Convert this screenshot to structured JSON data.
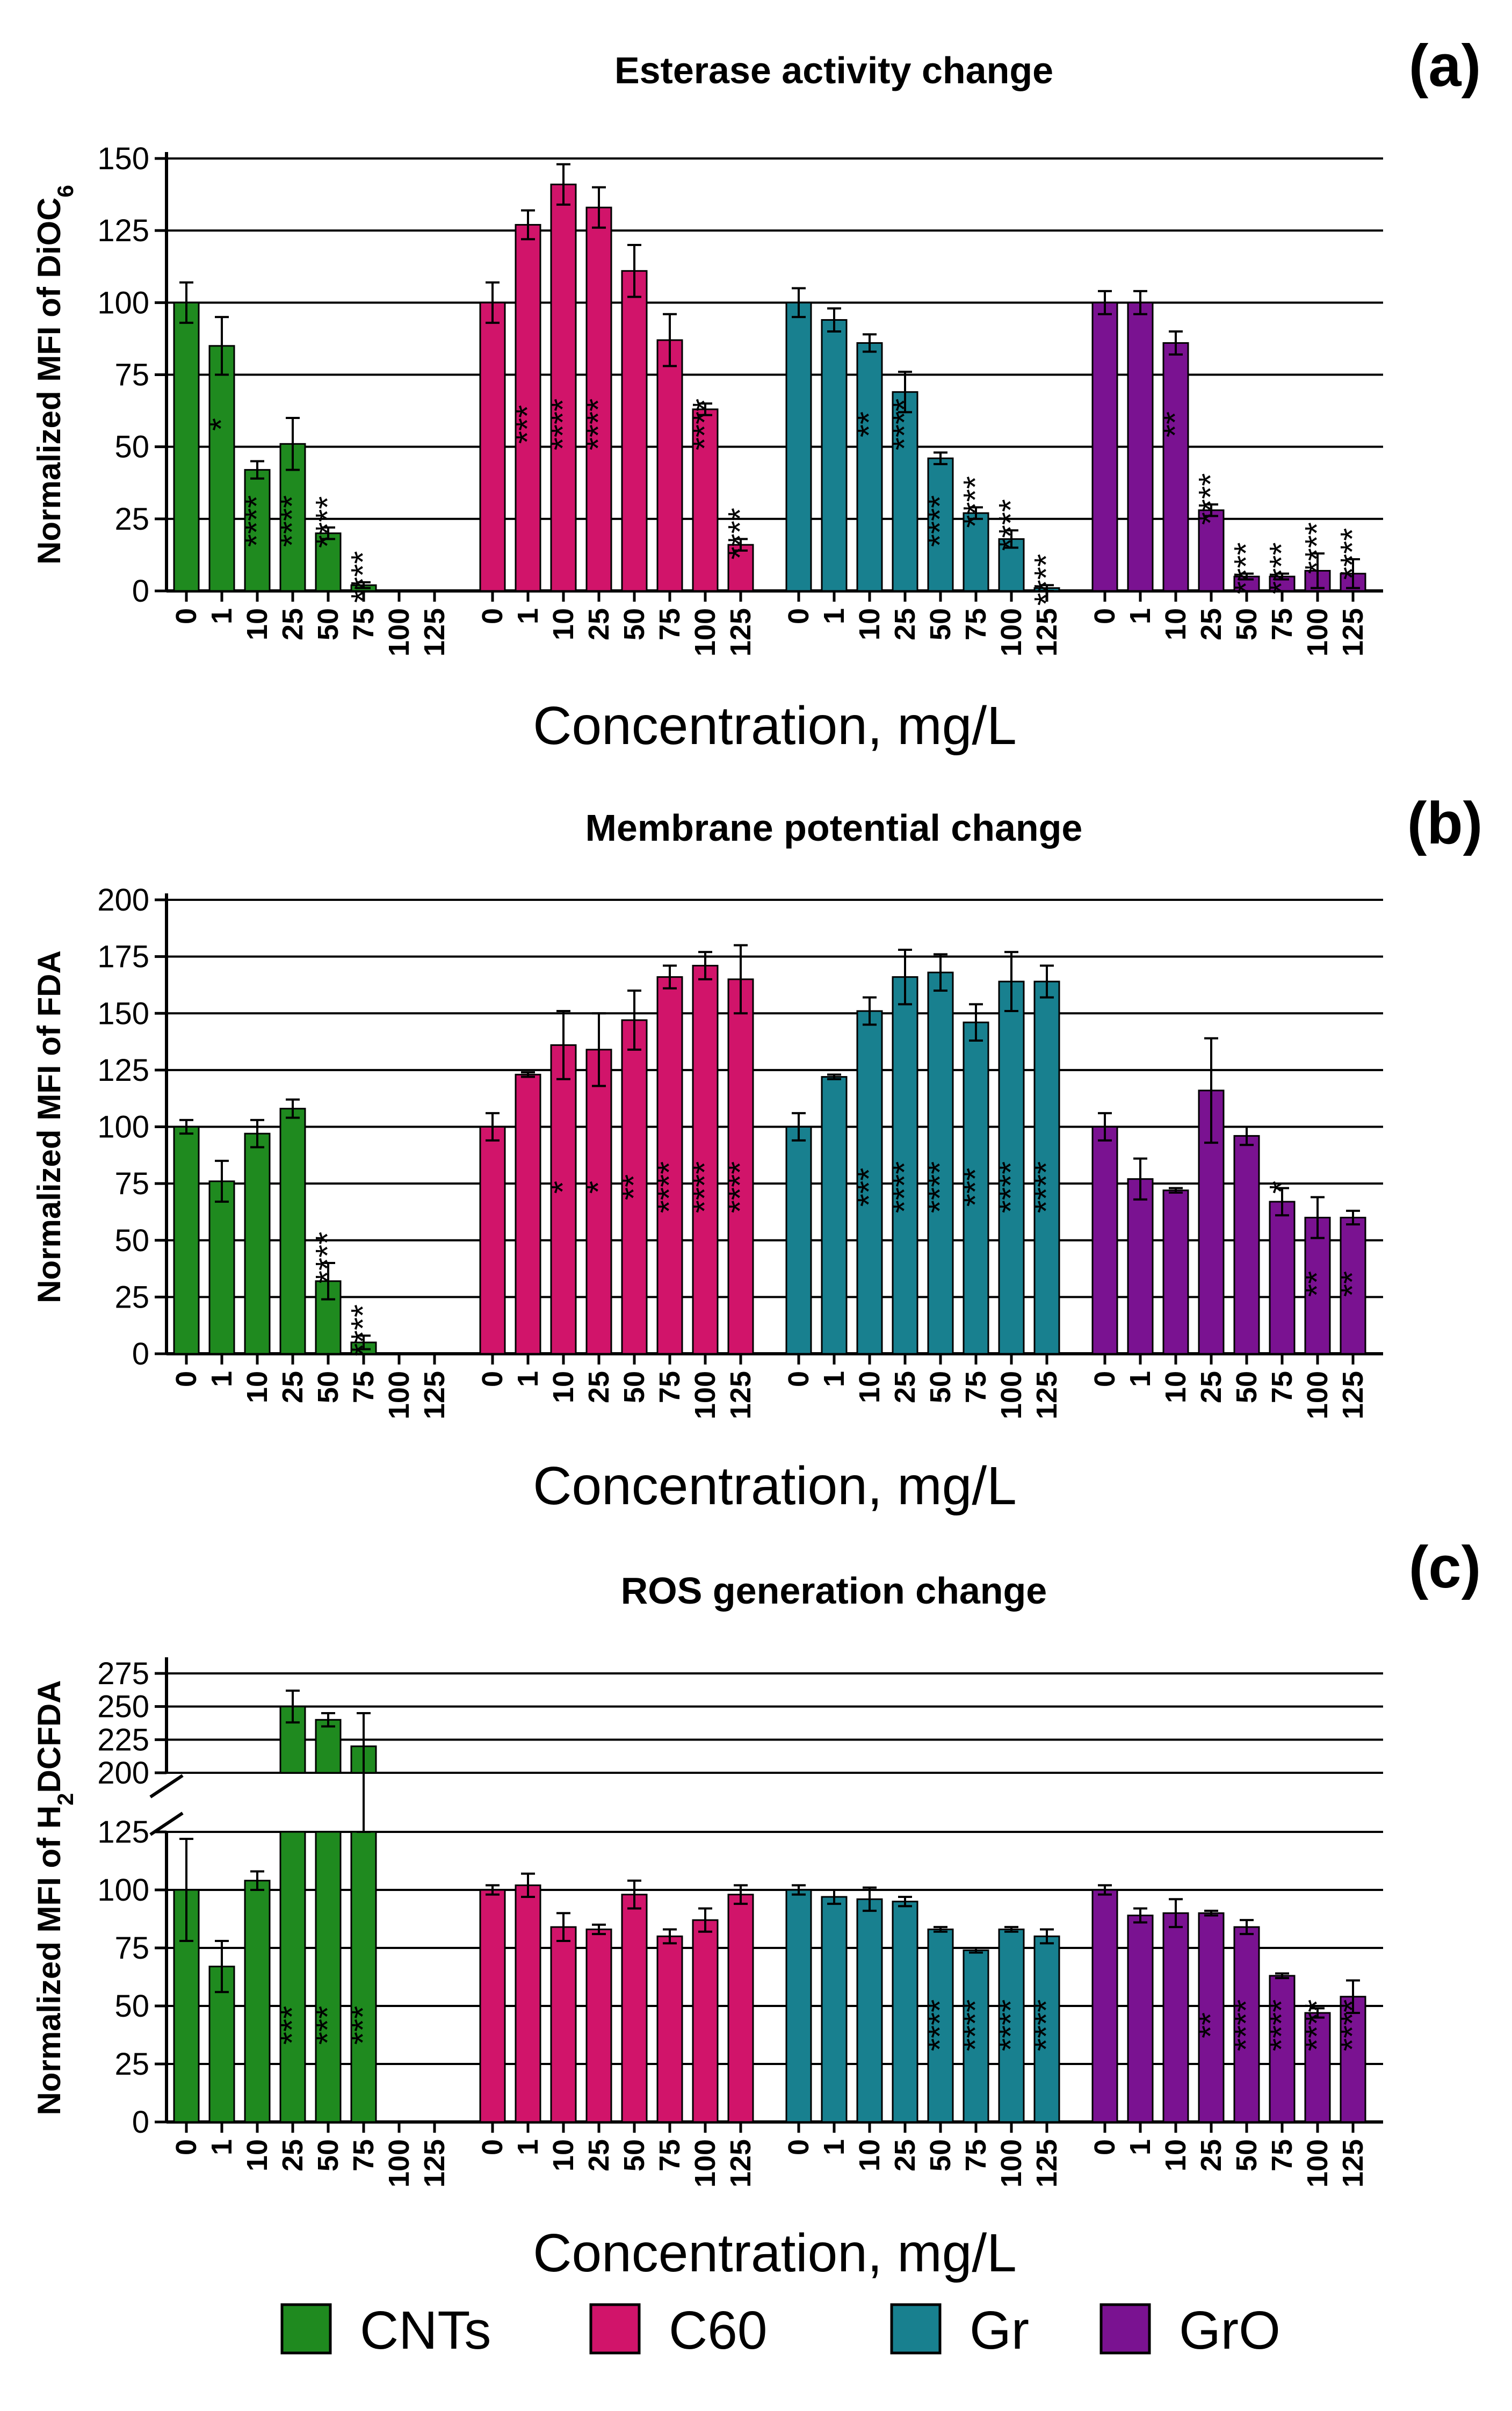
{
  "figure": {
    "panel_titles": [
      "(a)",
      "(b)",
      "(c)"
    ],
    "colors": {
      "CNTs": "#1f8a1f",
      "C60": "#d1146a",
      "Gr": "#18808f",
      "GrO": "#7a1291",
      "axis": "#000000"
    }
  },
  "legend": {
    "items": [
      {
        "label": "CNTs",
        "color": "#1f8a1f"
      },
      {
        "label": "C60",
        "color": "#d1146a"
      },
      {
        "label": "Gr",
        "color": "#18808f"
      },
      {
        "label": "GrO",
        "color": "#7a1291"
      }
    ]
  },
  "chart_data": [
    {
      "panel": "(a)",
      "type": "bar",
      "title": "Esterase activity change",
      "ylabel": "Normalized MFI of DiOC",
      "ylabel_subscript": "6",
      "xlabel": "Concentration, mg/L",
      "ylim": [
        0,
        150
      ],
      "yticks": [
        0,
        25,
        50,
        75,
        100,
        125,
        150
      ],
      "grid": true,
      "categories": [
        "0",
        "1",
        "10",
        "25",
        "50",
        "75",
        "100",
        "125"
      ],
      "series": [
        {
          "name": "CNTs",
          "values": [
            100,
            85,
            42,
            51,
            20,
            2,
            0,
            0
          ],
          "errors": [
            7,
            10,
            3,
            9,
            2,
            1,
            0,
            0
          ],
          "sig": [
            "",
            "*",
            "****",
            "****",
            "****",
            "****",
            "",
            ""
          ]
        },
        {
          "name": "C60",
          "values": [
            100,
            127,
            141,
            133,
            111,
            87,
            63,
            16
          ],
          "errors": [
            7,
            5,
            7,
            7,
            9,
            9,
            2,
            2
          ],
          "sig": [
            "",
            "***",
            "****",
            "****",
            "",
            "",
            "****",
            "****"
          ]
        },
        {
          "name": "Gr",
          "values": [
            100,
            94,
            86,
            69,
            46,
            27,
            18,
            1
          ],
          "errors": [
            5,
            4,
            3,
            7,
            2,
            2,
            3,
            1
          ],
          "sig": [
            "",
            "",
            "**",
            "****",
            "****",
            "****",
            "****",
            "****"
          ]
        },
        {
          "name": "GrO",
          "values": [
            100,
            100,
            86,
            28,
            5,
            5,
            7,
            6
          ],
          "errors": [
            4,
            4,
            4,
            2,
            1,
            1,
            6,
            5
          ],
          "sig": [
            "",
            "",
            "**",
            "****",
            "****",
            "****",
            "****",
            "****"
          ]
        }
      ]
    },
    {
      "panel": "(b)",
      "type": "bar",
      "title": "Membrane potential change",
      "ylabel": "Normalized MFI of FDA",
      "xlabel": "Concentration, mg/L",
      "ylim": [
        0,
        200
      ],
      "yticks": [
        0,
        25,
        50,
        75,
        100,
        125,
        150,
        175,
        200
      ],
      "grid": true,
      "categories": [
        "0",
        "1",
        "10",
        "25",
        "50",
        "75",
        "100",
        "125"
      ],
      "series": [
        {
          "name": "CNTs",
          "values": [
            100,
            76,
            97,
            108,
            32,
            5,
            0,
            0
          ],
          "errors": [
            3,
            9,
            6,
            4,
            8,
            3,
            0,
            0
          ],
          "sig": [
            "",
            "",
            "",
            "",
            "****",
            "****",
            "",
            ""
          ]
        },
        {
          "name": "C60",
          "values": [
            100,
            123,
            136,
            134,
            147,
            166,
            171,
            165
          ],
          "errors": [
            6,
            1,
            15,
            16,
            13,
            5,
            6,
            15
          ],
          "sig": [
            "",
            "",
            "*",
            "*",
            "**",
            "****",
            "****",
            "****"
          ]
        },
        {
          "name": "Gr",
          "values": [
            100,
            122,
            151,
            166,
            168,
            146,
            164,
            164
          ],
          "errors": [
            6,
            1,
            6,
            12,
            8,
            8,
            13,
            7
          ],
          "sig": [
            "",
            "",
            "***",
            "****",
            "****",
            "***",
            "****",
            "****"
          ]
        },
        {
          "name": "GrO",
          "values": [
            100,
            77,
            72,
            116,
            96,
            67,
            60,
            60
          ],
          "errors": [
            6,
            9,
            1,
            23,
            4,
            6,
            9,
            3
          ],
          "sig": [
            "",
            "",
            "",
            "",
            "",
            "*",
            "**",
            "**"
          ]
        }
      ]
    },
    {
      "panel": "(c)",
      "type": "bar",
      "title": "ROS generation change",
      "ylabel_prefix": "Normalized MFI of H",
      "ylabel_subscript": "2",
      "ylabel_suffix": "DCFDA",
      "xlabel": "Concentration, mg/L",
      "y_axis_break": [
        125,
        200
      ],
      "ylim": [
        0,
        275
      ],
      "yticks": [
        0,
        25,
        50,
        75,
        100,
        125,
        200,
        225,
        250,
        275
      ],
      "grid": true,
      "categories": [
        "0",
        "1",
        "10",
        "25",
        "50",
        "75",
        "100",
        "125"
      ],
      "series": [
        {
          "name": "CNTs",
          "values": [
            100,
            67,
            104,
            250,
            240,
            220,
            0,
            0
          ],
          "errors": [
            22,
            11,
            4,
            12,
            5,
            25,
            0,
            0
          ],
          "sig": [
            "",
            "",
            "",
            "***",
            "***",
            "***",
            "",
            ""
          ]
        },
        {
          "name": "C60",
          "values": [
            100,
            102,
            84,
            83,
            98,
            80,
            87,
            98
          ],
          "errors": [
            2,
            5,
            6,
            2,
            6,
            3,
            5,
            4
          ],
          "sig": [
            "",
            "",
            "",
            "",
            "",
            "",
            "",
            ""
          ]
        },
        {
          "name": "Gr",
          "values": [
            100,
            97,
            96,
            95,
            83,
            74,
            83,
            80
          ],
          "errors": [
            2,
            3,
            5,
            2,
            1,
            1,
            1,
            3
          ],
          "sig": [
            "",
            "",
            "",
            "",
            "****",
            "****",
            "****",
            "****"
          ]
        },
        {
          "name": "GrO",
          "values": [
            100,
            89,
            90,
            90,
            84,
            63,
            47,
            54
          ],
          "errors": [
            2,
            3,
            6,
            1,
            3,
            1,
            2,
            7
          ],
          "sig": [
            "",
            "",
            "",
            "**",
            "****",
            "****",
            "****",
            "****"
          ]
        }
      ]
    }
  ]
}
